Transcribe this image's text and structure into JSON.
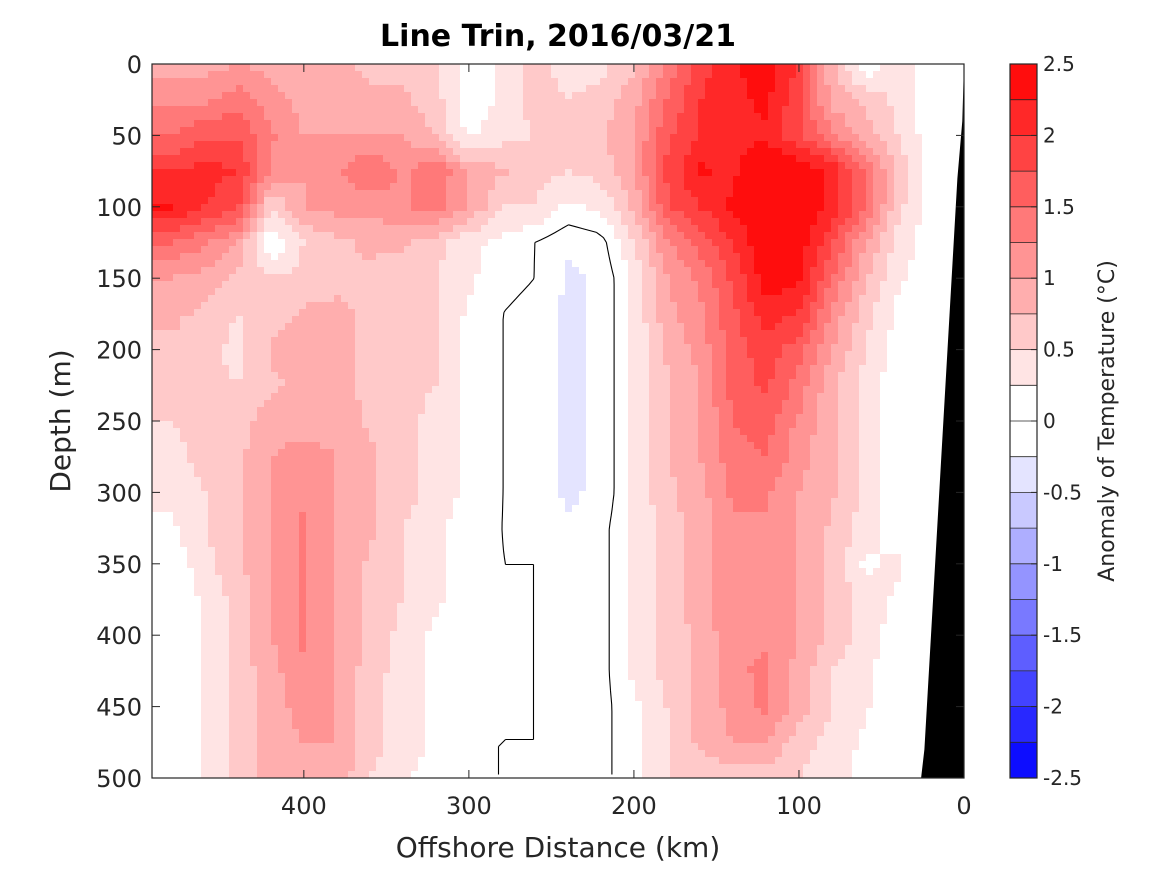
{
  "chart_data": {
    "type": "heatmap",
    "title": "Line Trin, 2016/03/21",
    "xlabel": "Offshore Distance (km)",
    "ylabel": "Depth (m)",
    "colorbar_label": "Anomaly of Temperature (°C)",
    "x_reversed": true,
    "y_reversed": true,
    "xlim": [
      492,
      0
    ],
    "ylim": [
      0,
      500
    ],
    "x_ticks": [
      400,
      300,
      200,
      100,
      0
    ],
    "y_ticks": [
      0,
      50,
      100,
      150,
      200,
      250,
      300,
      350,
      400,
      450,
      500
    ],
    "colorbar_range": [
      -2.5,
      2.5
    ],
    "colorbar_ticks": [
      2.5,
      2,
      1.5,
      1,
      0.5,
      0,
      -0.5,
      -1,
      -1.5,
      -2,
      -2.5
    ],
    "contour_levels": [
      -2.5,
      -2.25,
      -2,
      -1.75,
      -1.5,
      -1.25,
      -1,
      -0.75,
      -0.5,
      -0.25,
      0,
      0.25,
      0.5,
      0.75,
      1,
      1.25,
      1.5,
      1.75,
      2,
      2.25,
      2.5
    ],
    "colormap": {
      "negative_max": "#0000ff",
      "zero": "#ffffff",
      "positive_max": "#ff0000"
    },
    "depths": [
      0,
      25,
      50,
      75,
      100,
      125,
      150,
      175,
      200,
      225,
      250,
      275,
      300,
      325,
      350,
      375,
      400,
      425,
      450,
      475,
      500
    ],
    "distances": [
      480,
      460,
      440,
      420,
      400,
      380,
      360,
      340,
      320,
      300,
      280,
      260,
      240,
      220,
      200,
      180,
      160,
      140,
      120,
      100,
      80,
      60,
      40,
      20
    ],
    "values": [
      [
        0.9,
        0.9,
        1.0,
        0.9,
        0.9,
        0.8,
        0.7,
        0.7,
        0.5,
        0.1,
        0.3,
        0.6,
        0.4,
        0.4,
        0.7,
        1.3,
        1.9,
        2.2,
        2.4,
        2.0,
        0.8,
        0.0,
        0.5,
        0.1
      ],
      [
        1.2,
        1.2,
        1.4,
        1.1,
        0.9,
        0.8,
        0.8,
        0.8,
        0.6,
        0.1,
        0.3,
        0.6,
        0.5,
        0.6,
        0.9,
        1.5,
        2.0,
        2.2,
        2.3,
        1.8,
        0.9,
        0.7,
        0.4,
        0.1
      ],
      [
        1.5,
        1.7,
        1.7,
        1.3,
        1.0,
        1.0,
        1.0,
        1.0,
        0.7,
        0.2,
        0.4,
        0.5,
        0.5,
        0.7,
        1.0,
        1.7,
        2.0,
        2.2,
        2.2,
        1.8,
        1.3,
        0.9,
        0.5,
        0.1
      ],
      [
        2.0,
        2.1,
        2.0,
        1.2,
        1.0,
        1.2,
        1.5,
        1.2,
        1.5,
        0.9,
        0.8,
        0.6,
        0.5,
        0.6,
        1.0,
        1.8,
        2.3,
        2.2,
        2.5,
        2.5,
        2.2,
        1.5,
        0.7,
        0.1
      ],
      [
        2.3,
        2.0,
        1.8,
        0.5,
        1.0,
        1.1,
        1.1,
        1.2,
        1.4,
        1.0,
        0.5,
        0.5,
        0.2,
        0.3,
        0.8,
        1.7,
        2.0,
        2.3,
        2.5,
        2.5,
        2.2,
        1.5,
        0.6,
        0.1
      ],
      [
        1.5,
        1.3,
        1.0,
        0.0,
        0.5,
        0.7,
        0.8,
        0.8,
        0.6,
        0.3,
        0.2,
        0.0,
        -0.2,
        -0.1,
        0.5,
        1.2,
        1.6,
        2.0,
        2.5,
        2.4,
        1.8,
        1.0,
        0.4,
        0.1
      ],
      [
        1.0,
        0.9,
        0.7,
        0.5,
        0.6,
        0.7,
        0.7,
        0.6,
        0.5,
        0.3,
        0.1,
        0.0,
        -0.3,
        -0.2,
        0.3,
        1.0,
        1.3,
        1.8,
        2.4,
        2.3,
        1.5,
        0.8,
        0.3,
        0.1
      ],
      [
        0.8,
        0.7,
        0.5,
        0.6,
        0.8,
        0.8,
        0.7,
        0.6,
        0.5,
        0.2,
        0.0,
        -0.1,
        -0.3,
        -0.2,
        0.3,
        0.9,
        1.2,
        1.7,
        2.1,
        2.0,
        1.2,
        0.6,
        0.2,
        0.0
      ],
      [
        0.7,
        0.6,
        0.4,
        0.8,
        0.9,
        0.8,
        0.7,
        0.6,
        0.5,
        0.2,
        0.0,
        -0.1,
        -0.3,
        -0.2,
        0.3,
        0.8,
        1.1,
        1.6,
        1.9,
        1.6,
        1.0,
        0.5,
        0.1,
        0.0
      ],
      [
        0.6,
        0.6,
        0.5,
        0.7,
        0.8,
        0.8,
        0.7,
        0.6,
        0.5,
        0.2,
        0.0,
        -0.1,
        -0.3,
        -0.2,
        0.3,
        0.7,
        1.0,
        1.6,
        1.8,
        1.4,
        0.8,
        0.4,
        0.1,
        0.0
      ],
      [
        0.5,
        0.6,
        0.6,
        0.9,
        0.9,
        0.9,
        0.7,
        0.6,
        0.4,
        0.2,
        0.0,
        -0.1,
        -0.3,
        -0.2,
        0.3,
        0.7,
        1.0,
        1.5,
        1.6,
        1.2,
        0.8,
        0.4,
        0.0,
        0.0
      ],
      [
        0.4,
        0.6,
        0.7,
        1.0,
        1.1,
        1.0,
        0.8,
        0.6,
        0.4,
        0.2,
        0.0,
        -0.1,
        -0.3,
        -0.2,
        0.3,
        0.7,
        1.0,
        1.4,
        1.5,
        1.1,
        0.8,
        0.4,
        0.1,
        0.0
      ],
      [
        0.3,
        0.5,
        0.7,
        1.0,
        1.2,
        1.0,
        0.8,
        0.6,
        0.4,
        0.2,
        0.0,
        -0.1,
        -0.3,
        -0.2,
        0.3,
        0.7,
        0.9,
        1.3,
        1.3,
        1.0,
        0.8,
        0.4,
        0.1,
        0.0
      ],
      [
        0.2,
        0.5,
        0.7,
        1.0,
        1.3,
        1.0,
        0.8,
        0.5,
        0.3,
        0.1,
        0.0,
        -0.1,
        -0.2,
        -0.1,
        0.3,
        0.6,
        0.9,
        1.2,
        1.2,
        1.0,
        0.7,
        0.4,
        0.1,
        0.0
      ],
      [
        0.1,
        0.4,
        0.7,
        1.0,
        1.3,
        1.0,
        0.7,
        0.5,
        0.3,
        0.1,
        0.0,
        0.0,
        -0.2,
        -0.1,
        0.3,
        0.6,
        0.9,
        1.2,
        1.2,
        1.0,
        0.7,
        0.2,
        0.3,
        0.0
      ],
      [
        0.0,
        0.3,
        0.6,
        1.0,
        1.3,
        1.0,
        0.7,
        0.5,
        0.3,
        0.1,
        0.0,
        0.0,
        -0.2,
        -0.1,
        0.3,
        0.6,
        0.9,
        1.2,
        1.2,
        1.0,
        0.7,
        0.4,
        0.2,
        0.0
      ],
      [
        0.0,
        0.3,
        0.6,
        1.0,
        1.3,
        1.0,
        0.7,
        0.4,
        0.2,
        0.1,
        0.0,
        0.0,
        -0.2,
        -0.1,
        0.3,
        0.6,
        0.8,
        1.2,
        1.2,
        1.0,
        0.7,
        0.4,
        0.1,
        0.0
      ],
      [
        0.0,
        0.3,
        0.6,
        0.9,
        1.2,
        1.0,
        0.6,
        0.4,
        0.2,
        0.1,
        0.0,
        0.0,
        -0.2,
        -0.1,
        0.3,
        0.6,
        0.8,
        1.2,
        1.3,
        0.9,
        0.5,
        0.3,
        0.1,
        0.0
      ],
      [
        0.0,
        0.3,
        0.6,
        0.9,
        1.1,
        1.0,
        0.6,
        0.4,
        0.2,
        0.0,
        0.0,
        0.0,
        -0.2,
        -0.1,
        0.2,
        0.5,
        0.8,
        1.1,
        1.3,
        0.9,
        0.5,
        0.3,
        0.0,
        0.0
      ],
      [
        0.0,
        0.3,
        0.6,
        0.9,
        1.0,
        1.0,
        0.6,
        0.4,
        0.2,
        0.0,
        0.0,
        0.0,
        -0.2,
        -0.1,
        0.2,
        0.5,
        0.8,
        1.0,
        1.0,
        0.6,
        0.4,
        0.2,
        0.0,
        0.0
      ],
      [
        0.0,
        0.3,
        0.6,
        0.9,
        1.0,
        0.9,
        0.5,
        0.3,
        0.1,
        0.0,
        0.0,
        -0.1,
        -0.2,
        -0.1,
        0.2,
        0.5,
        0.6,
        0.6,
        0.6,
        0.5,
        0.3,
        0.2,
        0.0,
        0.0
      ]
    ],
    "land_mask_color": "#000000",
    "land_boundary": [
      [
        0,
        0
      ],
      [
        1,
        40
      ],
      [
        4,
        80
      ],
      [
        6,
        120
      ],
      [
        8,
        160
      ],
      [
        10,
        200
      ],
      [
        12,
        240
      ],
      [
        14,
        280
      ],
      [
        16,
        320
      ],
      [
        18,
        360
      ],
      [
        20,
        400
      ],
      [
        22,
        440
      ],
      [
        24,
        480
      ],
      [
        26,
        500
      ]
    ]
  }
}
